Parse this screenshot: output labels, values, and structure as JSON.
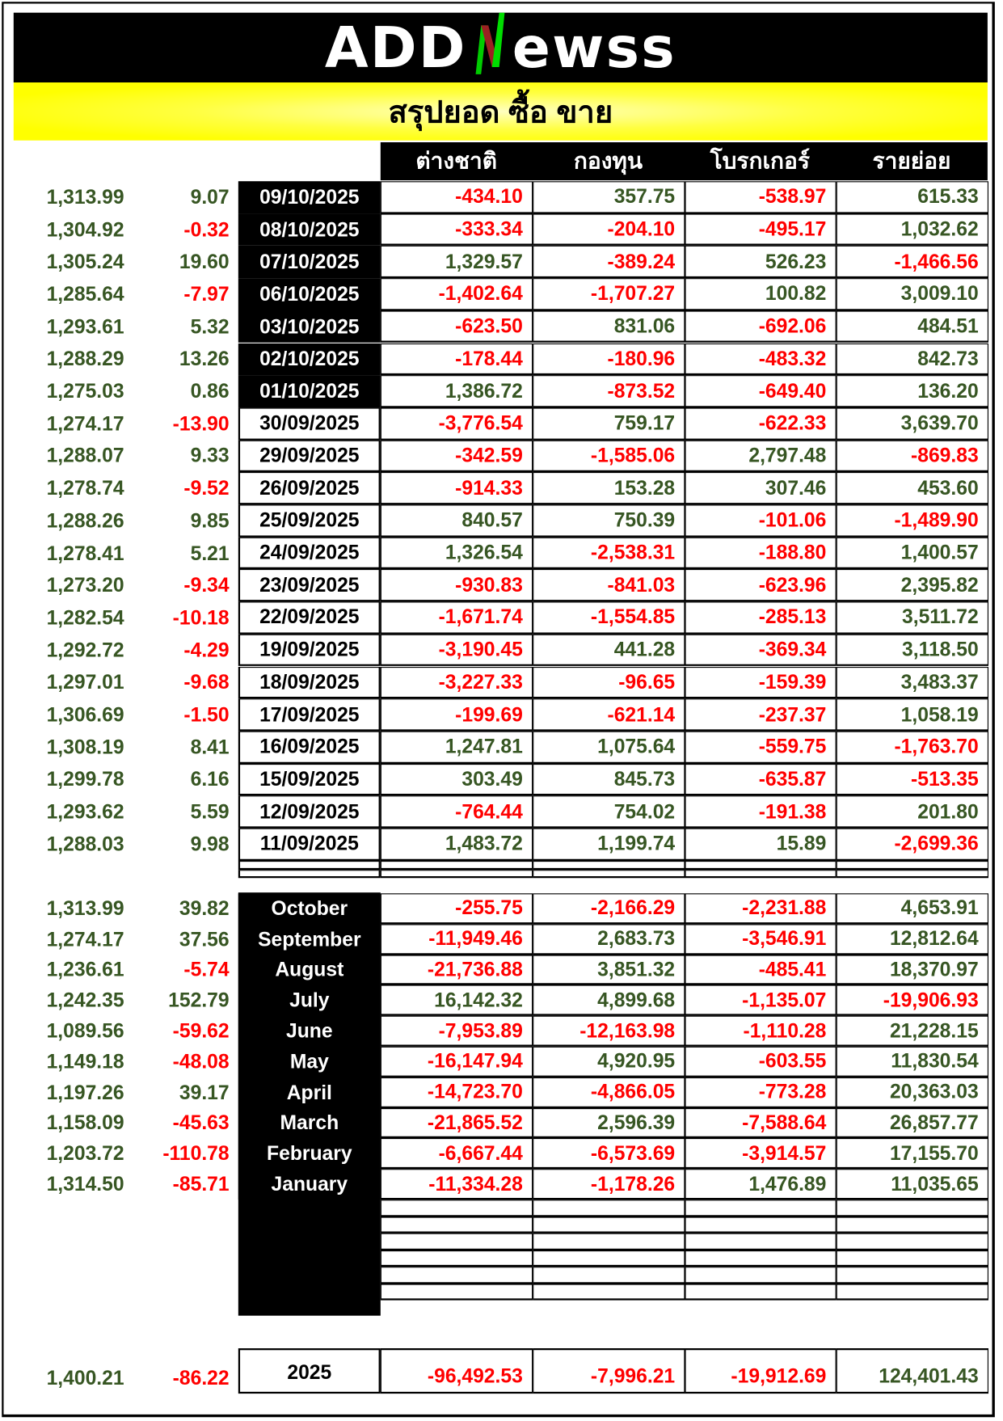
{
  "logo": {
    "text_left": "ADD",
    "text_right": "ewss",
    "n_colors": [
      "#00cc00",
      "#b22222"
    ]
  },
  "title": "สรุปยอด ซื้อ ขาย",
  "columns": [
    "ต่างชาติ",
    "กองทุน",
    "โบรกเกอร์",
    "รายย่อย"
  ],
  "colors": {
    "positive": "#375623",
    "negative": "#ff0000",
    "highlight_bg": "#000000"
  },
  "daily": [
    {
      "index": "1,313.99",
      "change": "9.07",
      "date": "09/10/2025",
      "values": [
        "-434.10",
        "357.75",
        "-538.97",
        "615.33"
      ]
    },
    {
      "index": "1,304.92",
      "change": "-0.32",
      "date": "08/10/2025",
      "values": [
        "-333.34",
        "-204.10",
        "-495.17",
        "1,032.62"
      ]
    },
    {
      "index": "1,305.24",
      "change": "19.60",
      "date": "07/10/2025",
      "values": [
        "1,329.57",
        "-389.24",
        "526.23",
        "-1,466.56"
      ]
    },
    {
      "index": "1,285.64",
      "change": "-7.97",
      "date": "06/10/2025",
      "values": [
        "-1,402.64",
        "-1,707.27",
        "100.82",
        "3,009.10"
      ]
    },
    {
      "index": "1,293.61",
      "change": "5.32",
      "date": "03/10/2025",
      "values": [
        "-623.50",
        "831.06",
        "-692.06",
        "484.51"
      ]
    },
    {
      "index": "1,288.29",
      "change": "13.26",
      "date": "02/10/2025",
      "values": [
        "-178.44",
        "-180.96",
        "-483.32",
        "842.73"
      ]
    },
    {
      "index": "1,275.03",
      "change": "0.86",
      "date": "01/10/2025",
      "values": [
        "1,386.72",
        "-873.52",
        "-649.40",
        "136.20"
      ]
    },
    {
      "index": "1,274.17",
      "change": "-13.90",
      "date": "30/09/2025",
      "values": [
        "-3,776.54",
        "759.17",
        "-622.33",
        "3,639.70"
      ]
    },
    {
      "index": "1,288.07",
      "change": "9.33",
      "date": "29/09/2025",
      "values": [
        "-342.59",
        "-1,585.06",
        "2,797.48",
        "-869.83"
      ]
    },
    {
      "index": "1,278.74",
      "change": "-9.52",
      "date": "26/09/2025",
      "values": [
        "-914.33",
        "153.28",
        "307.46",
        "453.60"
      ]
    },
    {
      "index": "1,288.26",
      "change": "9.85",
      "date": "25/09/2025",
      "values": [
        "840.57",
        "750.39",
        "-101.06",
        "-1,489.90"
      ]
    },
    {
      "index": "1,278.41",
      "change": "5.21",
      "date": "24/09/2025",
      "values": [
        "1,326.54",
        "-2,538.31",
        "-188.80",
        "1,400.57"
      ]
    },
    {
      "index": "1,273.20",
      "change": "-9.34",
      "date": "23/09/2025",
      "values": [
        "-930.83",
        "-841.03",
        "-623.96",
        "2,395.82"
      ]
    },
    {
      "index": "1,282.54",
      "change": "-10.18",
      "date": "22/09/2025",
      "values": [
        "-1,671.74",
        "-1,554.85",
        "-285.13",
        "3,511.72"
      ]
    },
    {
      "index": "1,292.72",
      "change": "-4.29",
      "date": "19/09/2025",
      "values": [
        "-3,190.45",
        "441.28",
        "-369.34",
        "3,118.50"
      ]
    },
    {
      "index": "1,297.01",
      "change": "-9.68",
      "date": "18/09/2025",
      "values": [
        "-3,227.33",
        "-96.65",
        "-159.39",
        "3,483.37"
      ]
    },
    {
      "index": "1,306.69",
      "change": "-1.50",
      "date": "17/09/2025",
      "values": [
        "-199.69",
        "-621.14",
        "-237.37",
        "1,058.19"
      ]
    },
    {
      "index": "1,308.19",
      "change": "8.41",
      "date": "16/09/2025",
      "values": [
        "1,247.81",
        "1,075.64",
        "-559.75",
        "-1,763.70"
      ]
    },
    {
      "index": "1,299.78",
      "change": "6.16",
      "date": "15/09/2025",
      "values": [
        "303.49",
        "845.73",
        "-635.87",
        "-513.35"
      ]
    },
    {
      "index": "1,293.62",
      "change": "5.59",
      "date": "12/09/2025",
      "values": [
        "-764.44",
        "754.02",
        "-191.38",
        "201.80"
      ]
    },
    {
      "index": "1,288.03",
      "change": "9.98",
      "date": "11/09/2025",
      "values": [
        "1,483.72",
        "1,199.74",
        "15.89",
        "-2,699.36"
      ]
    }
  ],
  "monthly": [
    {
      "index": "1,313.99",
      "change": "39.82",
      "month": "October",
      "values": [
        "-255.75",
        "-2,166.29",
        "-2,231.88",
        "4,653.91"
      ]
    },
    {
      "index": "1,274.17",
      "change": "37.56",
      "month": "September",
      "values": [
        "-11,949.46",
        "2,683.73",
        "-3,546.91",
        "12,812.64"
      ]
    },
    {
      "index": "1,236.61",
      "change": "-5.74",
      "month": "August",
      "values": [
        "-21,736.88",
        "3,851.32",
        "-485.41",
        "18,370.97"
      ]
    },
    {
      "index": "1,242.35",
      "change": "152.79",
      "month": "July",
      "values": [
        "16,142.32",
        "4,899.68",
        "-1,135.07",
        "-19,906.93"
      ]
    },
    {
      "index": "1,089.56",
      "change": "-59.62",
      "month": "June",
      "values": [
        "-7,953.89",
        "-12,163.98",
        "-1,110.28",
        "21,228.15"
      ]
    },
    {
      "index": "1,149.18",
      "change": "-48.08",
      "month": "May",
      "values": [
        "-16,147.94",
        "4,920.95",
        "-603.55",
        "11,830.54"
      ]
    },
    {
      "index": "1,197.26",
      "change": "39.17",
      "month": "April",
      "values": [
        "-14,723.70",
        "-4,866.05",
        "-773.28",
        "20,363.03"
      ]
    },
    {
      "index": "1,158.09",
      "change": "-45.63",
      "month": "March",
      "values": [
        "-21,865.52",
        "2,596.39",
        "-7,588.64",
        "26,857.77"
      ]
    },
    {
      "index": "1,203.72",
      "change": "-110.78",
      "month": "February",
      "values": [
        "-6,667.44",
        "-6,573.69",
        "-3,914.57",
        "17,155.70"
      ]
    },
    {
      "index": "1,314.50",
      "change": "-85.71",
      "month": "January",
      "values": [
        "-11,334.28",
        "-1,178.26",
        "1,476.89",
        "11,035.65"
      ]
    }
  ],
  "total": {
    "index": "1,400.21",
    "change": "-86.22",
    "year": "2025",
    "values": [
      "-96,492.53",
      "-7,996.21",
      "-19,912.69",
      "124,401.43"
    ]
  }
}
